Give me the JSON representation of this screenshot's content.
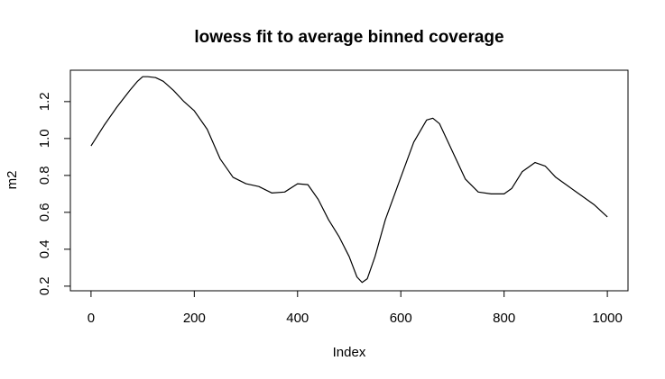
{
  "chart_data": {
    "type": "line",
    "title": "lowess fit to average binned coverage",
    "xlabel": "Index",
    "ylabel": "m2",
    "xlim": [
      -40,
      1040
    ],
    "ylim": [
      0.175,
      1.37
    ],
    "x_ticks": [
      0,
      200,
      400,
      600,
      800,
      1000
    ],
    "x_tick_labels": [
      "0",
      "200",
      "400",
      "600",
      "800",
      "1000"
    ],
    "y_ticks": [
      0.2,
      0.4,
      0.6,
      0.8,
      1.0,
      1.2
    ],
    "y_tick_labels": [
      "0.2",
      "0.4",
      "0.6",
      "0.8",
      "1.0",
      "1.2"
    ],
    "grid": false,
    "series": [
      {
        "color": "#000000",
        "x": [
          0,
          25,
          50,
          75,
          90,
          100,
          110,
          125,
          140,
          160,
          180,
          200,
          225,
          250,
          275,
          300,
          325,
          350,
          375,
          400,
          420,
          440,
          460,
          480,
          500,
          515,
          525,
          535,
          550,
          570,
          600,
          625,
          650,
          662,
          675,
          700,
          725,
          750,
          775,
          800,
          815,
          835,
          860,
          880,
          900,
          925,
          950,
          975,
          1000
        ],
        "y": [
          0.96,
          1.07,
          1.17,
          1.26,
          1.31,
          1.335,
          1.335,
          1.33,
          1.31,
          1.26,
          1.2,
          1.15,
          1.05,
          0.89,
          0.79,
          0.755,
          0.74,
          0.705,
          0.71,
          0.755,
          0.75,
          0.67,
          0.56,
          0.47,
          0.36,
          0.25,
          0.22,
          0.24,
          0.36,
          0.56,
          0.79,
          0.98,
          1.1,
          1.11,
          1.08,
          0.93,
          0.78,
          0.71,
          0.7,
          0.7,
          0.73,
          0.82,
          0.87,
          0.85,
          0.79,
          0.74,
          0.69,
          0.64,
          0.575
        ]
      }
    ]
  }
}
